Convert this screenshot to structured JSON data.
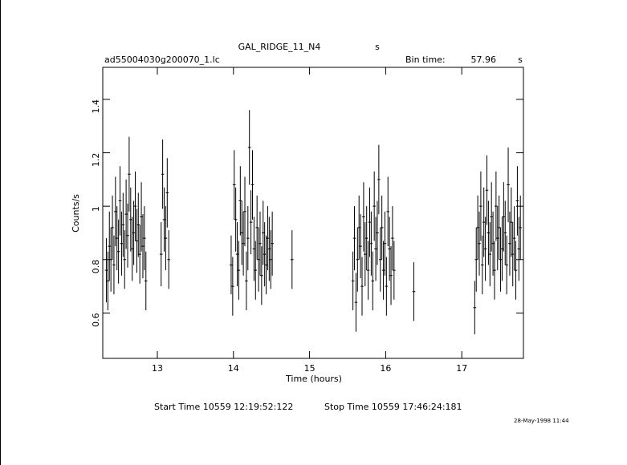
{
  "chart_data": {
    "type": "errorbar",
    "title": "GAL_RIDGE_11_N4",
    "title_suffix": "s",
    "file": "ad55004030g200070_1.lc",
    "bin_time_label": "Bin time:",
    "bin_time": 57.96,
    "bin_time_unit": "s",
    "xlabel": "Time (hours)",
    "ylabel": "Counts/s",
    "start_time": "Start Time 10559 12:19:52:122",
    "stop_time": "Stop Time 10559 17:46:24:181",
    "date": "28-May-1998 11:44",
    "xlim": [
      12.283,
      17.81
    ],
    "xticks": [
      13,
      14,
      15,
      16,
      17
    ],
    "ylim": [
      0.43,
      1.52
    ],
    "yticks": [
      0.6,
      0.8,
      1,
      1.2,
      1.4
    ],
    "series": [
      {
        "color": "#000000",
        "x": [
          12.33,
          12.35,
          12.37,
          12.39,
          12.41,
          12.43,
          12.45,
          12.47,
          12.49,
          12.51,
          12.53,
          12.55,
          12.57,
          12.59,
          12.61,
          12.63,
          12.65,
          12.67,
          12.69,
          12.71,
          12.73,
          12.75,
          12.77,
          12.79,
          12.81,
          12.83,
          12.85,
          13.05,
          13.07,
          13.09,
          13.11,
          13.13,
          13.15,
          13.97,
          13.99,
          14.01,
          14.03,
          14.05,
          14.07,
          14.09,
          14.11,
          14.13,
          14.15,
          14.17,
          14.19,
          14.21,
          14.23,
          14.25,
          14.27,
          14.29,
          14.31,
          14.33,
          14.35,
          14.37,
          14.39,
          14.41,
          14.43,
          14.45,
          14.47,
          14.49,
          14.51,
          14.77,
          15.57,
          15.59,
          15.61,
          15.63,
          15.65,
          15.67,
          15.69,
          15.71,
          15.73,
          15.75,
          15.77,
          15.79,
          15.81,
          15.83,
          15.85,
          15.87,
          15.89,
          15.91,
          15.93,
          15.95,
          15.97,
          15.99,
          16.01,
          16.03,
          16.05,
          16.07,
          16.09,
          16.11,
          16.37,
          17.17,
          17.19,
          17.21,
          17.23,
          17.25,
          17.27,
          17.29,
          17.31,
          17.33,
          17.35,
          17.37,
          17.39,
          17.41,
          17.43,
          17.45,
          17.47,
          17.49,
          17.51,
          17.53,
          17.55,
          17.57,
          17.59,
          17.61,
          17.63,
          17.65,
          17.67,
          17.69,
          17.71,
          17.73,
          17.75,
          17.77
        ],
        "values": [
          0.76,
          0.72,
          0.85,
          0.8,
          0.92,
          0.78,
          0.98,
          0.88,
          0.83,
          1.02,
          0.86,
          0.93,
          0.8,
          0.97,
          0.89,
          1.12,
          0.95,
          0.84,
          0.9,
          1.0,
          0.87,
          0.93,
          0.82,
          0.96,
          0.85,
          0.88,
          0.72,
          0.82,
          1.12,
          0.95,
          0.88,
          1.05,
          0.8,
          0.78,
          0.7,
          1.08,
          0.95,
          0.82,
          0.76,
          1.02,
          0.9,
          0.86,
          0.98,
          0.72,
          0.88,
          1.22,
          0.94,
          1.08,
          0.84,
          0.76,
          0.92,
          0.8,
          0.86,
          0.74,
          0.9,
          0.82,
          0.78,
          0.88,
          0.84,
          0.8,
          0.86,
          0.8,
          0.72,
          0.88,
          0.64,
          0.8,
          0.92,
          0.85,
          0.7,
          0.96,
          0.82,
          0.88,
          0.76,
          0.94,
          0.86,
          0.72,
          1.0,
          0.84,
          0.9,
          1.1,
          0.8,
          0.92,
          0.76,
          0.86,
          0.7,
          0.98,
          0.84,
          0.74,
          0.88,
          0.76,
          0.68,
          0.62,
          0.8,
          0.92,
          0.86,
          1.0,
          0.78,
          0.94,
          0.84,
          1.06,
          0.9,
          0.82,
          0.96,
          0.86,
          0.76,
          1.0,
          0.88,
          0.92,
          0.8,
          0.84,
          0.96,
          0.9,
          0.78,
          1.08,
          0.86,
          0.94,
          0.82,
          0.88,
          0.76,
          1.02,
          0.84,
          0.92
        ],
        "errors": [
          0.12,
          0.11,
          0.13,
          0.12,
          0.12,
          0.11,
          0.13,
          0.12,
          0.12,
          0.13,
          0.12,
          0.12,
          0.11,
          0.13,
          0.12,
          0.14,
          0.12,
          0.12,
          0.12,
          0.13,
          0.12,
          0.12,
          0.11,
          0.13,
          0.12,
          0.12,
          0.11,
          0.12,
          0.13,
          0.12,
          0.12,
          0.13,
          0.11,
          0.11,
          0.11,
          0.13,
          0.12,
          0.12,
          0.11,
          0.13,
          0.12,
          0.12,
          0.13,
          0.11,
          0.12,
          0.14,
          0.12,
          0.13,
          0.12,
          0.11,
          0.12,
          0.12,
          0.12,
          0.11,
          0.12,
          0.12,
          0.11,
          0.12,
          0.12,
          0.11,
          0.12,
          0.11,
          0.11,
          0.12,
          0.11,
          0.12,
          0.12,
          0.12,
          0.11,
          0.13,
          0.12,
          0.12,
          0.11,
          0.13,
          0.12,
          0.11,
          0.13,
          0.12,
          0.12,
          0.13,
          0.12,
          0.12,
          0.11,
          0.12,
          0.11,
          0.13,
          0.12,
          0.11,
          0.12,
          0.11,
          0.11,
          0.1,
          0.12,
          0.12,
          0.12,
          0.13,
          0.11,
          0.13,
          0.12,
          0.13,
          0.12,
          0.12,
          0.13,
          0.12,
          0.11,
          0.13,
          0.12,
          0.12,
          0.12,
          0.12,
          0.13,
          0.12,
          0.11,
          0.14,
          0.12,
          0.13,
          0.12,
          0.12,
          0.11,
          0.13,
          0.12,
          0.12
        ]
      }
    ]
  }
}
